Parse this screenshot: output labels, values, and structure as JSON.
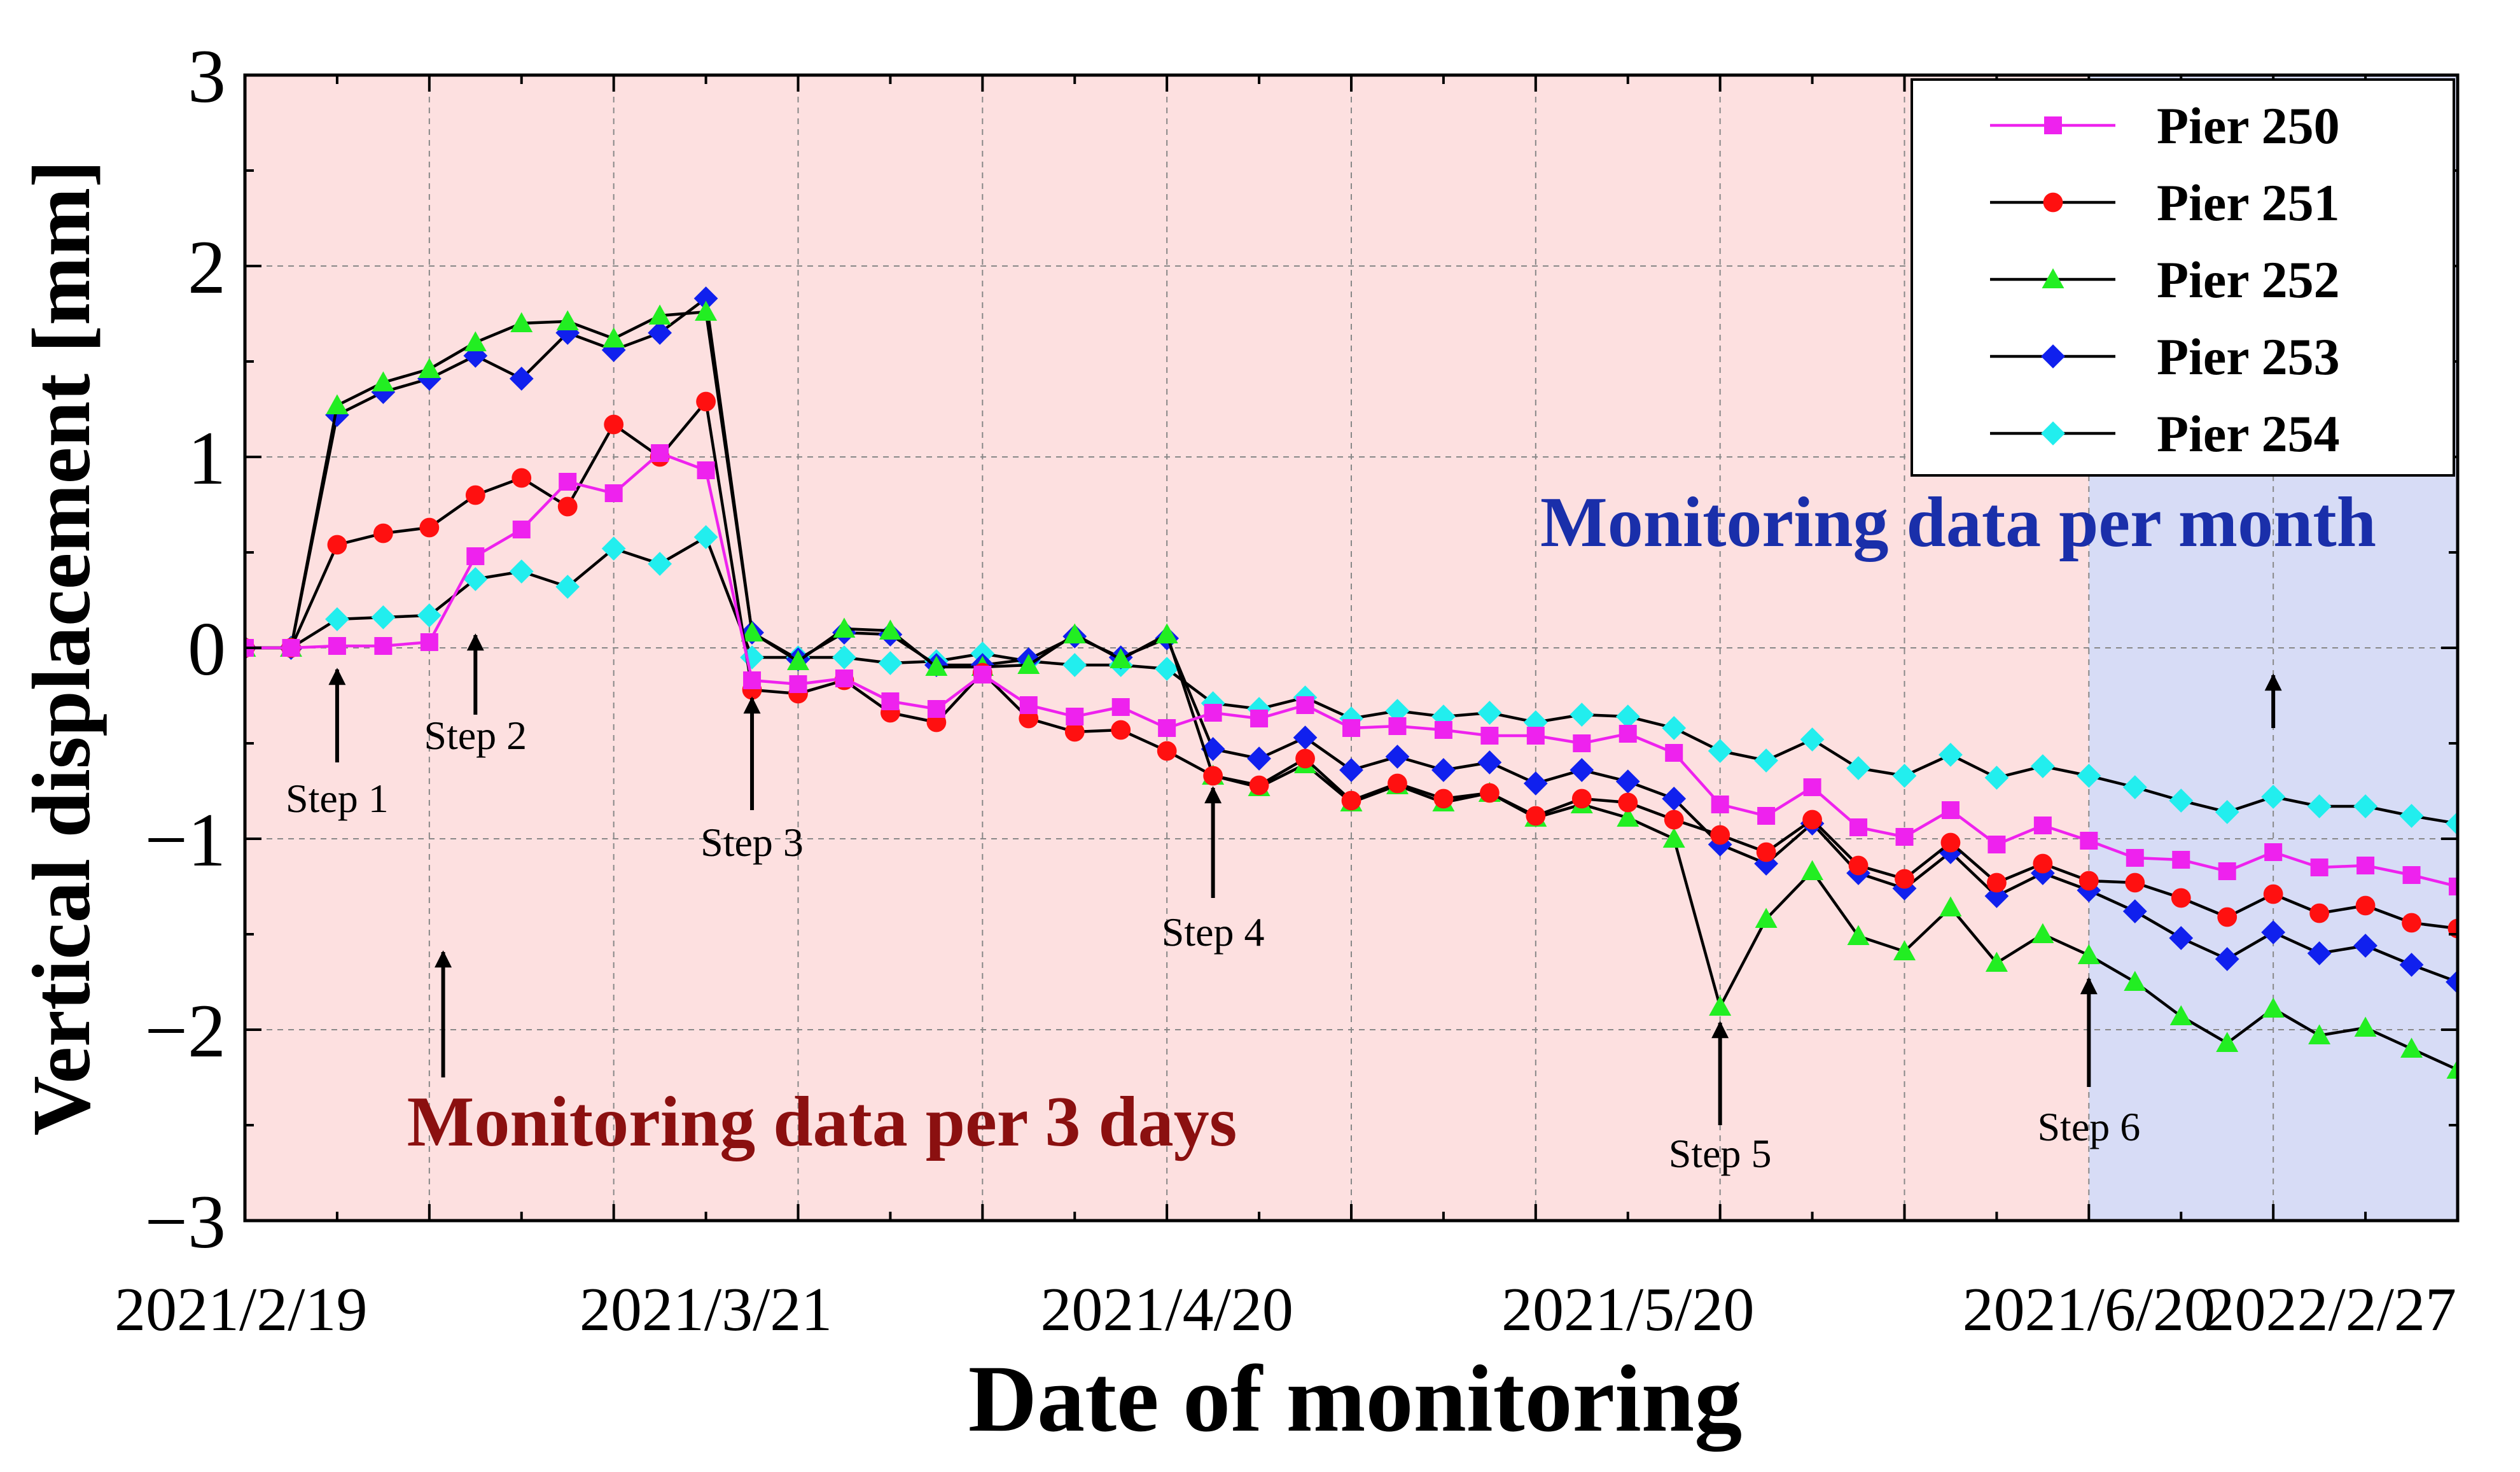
{
  "chart_data": {
    "type": "line",
    "xlabel": "Date of monitoring",
    "ylabel": "Vertical displacement [mm]",
    "ylim": [
      -3,
      3
    ],
    "yticks": [
      {
        "value": 3,
        "label": "3"
      },
      {
        "value": 2,
        "label": "2"
      },
      {
        "value": 1,
        "label": "1"
      },
      {
        "value": 0,
        "label": "0"
      },
      {
        "value": -1,
        "label": "−1"
      },
      {
        "value": -2,
        "label": "−2"
      },
      {
        "value": -3,
        "label": "−3"
      }
    ],
    "xlim": [
      0,
      48
    ],
    "xticks": [
      {
        "index": 0,
        "label": "2021/2/19"
      },
      {
        "index": 10,
        "label": "2021/3/21"
      },
      {
        "index": 20,
        "label": "2021/4/20"
      },
      {
        "index": 30,
        "label": "2021/5/20"
      },
      {
        "index": 40,
        "label": "2021/6/20"
      },
      {
        "index": 48,
        "label": "2022/2/27"
      }
    ],
    "grid": true,
    "legend_position": "top-right",
    "regions": [
      {
        "from": 0,
        "to": 40,
        "color": "#fde0e0",
        "label": "Monitoring data per 3 days",
        "label_color": "#8b1010"
      },
      {
        "from": 40,
        "to": 48,
        "color": "#d7dcf6",
        "label": "Monitoring data per month",
        "label_color": "#1a2faa"
      }
    ],
    "series": [
      {
        "name": "Pier 250",
        "color": "#ee22ee",
        "line_color": "#ee22ee",
        "marker": "square",
        "values": [
          0,
          0,
          0.01,
          0.01,
          0.03,
          0.48,
          0.62,
          0.87,
          0.81,
          1.02,
          0.93,
          -0.17,
          -0.19,
          -0.16,
          -0.28,
          -0.32,
          -0.14,
          -0.3,
          -0.36,
          -0.31,
          -0.42,
          -0.34,
          -0.37,
          -0.3,
          -0.42,
          -0.41,
          -0.43,
          -0.46,
          -0.46,
          -0.5,
          -0.45,
          -0.55,
          -0.82,
          -0.88,
          -0.73,
          -0.94,
          -0.99,
          -0.85,
          -1.03,
          -0.93,
          -1.01,
          -1.1,
          -1.11,
          -1.17,
          -1.07,
          -1.15,
          -1.14,
          -1.19,
          -1.25
        ]
      },
      {
        "name": "Pier 251",
        "color": "#ff1010",
        "line_color": "#000000",
        "marker": "circle",
        "values": [
          0,
          0,
          0.54,
          0.6,
          0.63,
          0.8,
          0.89,
          0.74,
          1.17,
          1.0,
          1.29,
          -0.22,
          -0.24,
          -0.17,
          -0.34,
          -0.39,
          -0.13,
          -0.37,
          -0.44,
          -0.43,
          -0.54,
          -0.67,
          -0.72,
          -0.58,
          -0.8,
          -0.71,
          -0.79,
          -0.76,
          -0.88,
          -0.79,
          -0.81,
          -0.9,
          -0.98,
          -1.07,
          -0.9,
          -1.14,
          -1.21,
          -1.02,
          -1.23,
          -1.13,
          -1.22,
          -1.23,
          -1.31,
          -1.41,
          -1.29,
          -1.39,
          -1.35,
          -1.44,
          -1.47
        ]
      },
      {
        "name": "Pier 252",
        "color": "#22ee22",
        "line_color": "#000000",
        "marker": "triangle",
        "values": [
          0,
          0,
          1.27,
          1.39,
          1.46,
          1.6,
          1.7,
          1.71,
          1.62,
          1.74,
          1.76,
          0.08,
          -0.07,
          0.1,
          0.09,
          -0.1,
          -0.1,
          -0.09,
          0.07,
          -0.06,
          0.07,
          -0.67,
          -0.73,
          -0.61,
          -0.81,
          -0.72,
          -0.81,
          -0.76,
          -0.89,
          -0.82,
          -0.89,
          -1.0,
          -1.88,
          -1.42,
          -1.17,
          -1.51,
          -1.59,
          -1.36,
          -1.65,
          -1.5,
          -1.61,
          -1.75,
          -1.93,
          -2.07,
          -1.89,
          -2.03,
          -1.99,
          -2.1,
          -2.21
        ]
      },
      {
        "name": "Pier 253",
        "color": "#1020ee",
        "line_color": "#000000",
        "marker": "diamond",
        "values": [
          0,
          0,
          1.22,
          1.34,
          1.41,
          1.53,
          1.41,
          1.65,
          1.56,
          1.65,
          1.83,
          0.08,
          -0.06,
          0.08,
          0.07,
          -0.09,
          -0.09,
          -0.06,
          0.06,
          -0.05,
          0.05,
          -0.53,
          -0.58,
          -0.47,
          -0.64,
          -0.57,
          -0.64,
          -0.6,
          -0.71,
          -0.64,
          -0.7,
          -0.79,
          -1.03,
          -1.13,
          -0.92,
          -1.18,
          -1.26,
          -1.07,
          -1.3,
          -1.18,
          -1.27,
          -1.38,
          -1.52,
          -1.63,
          -1.49,
          -1.6,
          -1.56,
          -1.66,
          -1.75
        ]
      },
      {
        "name": "Pier 254",
        "color": "#22eeee",
        "line_color": "#000000",
        "marker": "diamond",
        "values": [
          0,
          0,
          0.15,
          0.16,
          0.17,
          0.36,
          0.4,
          0.32,
          0.52,
          0.44,
          0.58,
          -0.05,
          -0.05,
          -0.05,
          -0.08,
          -0.07,
          -0.03,
          -0.07,
          -0.09,
          -0.09,
          -0.11,
          -0.29,
          -0.32,
          -0.26,
          -0.37,
          -0.33,
          -0.36,
          -0.34,
          -0.39,
          -0.35,
          -0.36,
          -0.42,
          -0.54,
          -0.59,
          -0.48,
          -0.63,
          -0.67,
          -0.56,
          -0.68,
          -0.62,
          -0.67,
          -0.73,
          -0.8,
          -0.86,
          -0.78,
          -0.83,
          -0.83,
          -0.88,
          -0.92
        ]
      }
    ],
    "annotations": [
      {
        "text": "Step 1",
        "index": 2.0,
        "arrow_tip": -0.1,
        "arrow_tail": -0.6,
        "label_value": -0.86
      },
      {
        "text": "Step 2",
        "index": 5.0,
        "arrow_tip": 0.08,
        "arrow_tail": -0.35,
        "label_value": -0.53
      },
      {
        "text": "Step 3",
        "index": 11.0,
        "arrow_tip": -0.25,
        "arrow_tail": -0.85,
        "label_value": -1.09
      },
      {
        "text": "Step 4",
        "index": 21.0,
        "arrow_tip": -0.72,
        "arrow_tail": -1.31,
        "label_value": -1.56
      },
      {
        "text": "Step 5",
        "index": 32.0,
        "arrow_tip": -1.95,
        "arrow_tail": -2.5,
        "label_value": -2.72
      },
      {
        "text": "Step 6",
        "index": 40.0,
        "arrow_tip": -1.72,
        "arrow_tail": -2.3,
        "label_value": -2.58
      },
      {
        "text": "",
        "index": 4.3,
        "arrow_tip": -1.58,
        "arrow_tail": -2.25,
        "label_value": null
      },
      {
        "text": "",
        "index": 44.0,
        "arrow_tip": -0.13,
        "arrow_tail": -0.42,
        "label_value": null
      }
    ]
  }
}
